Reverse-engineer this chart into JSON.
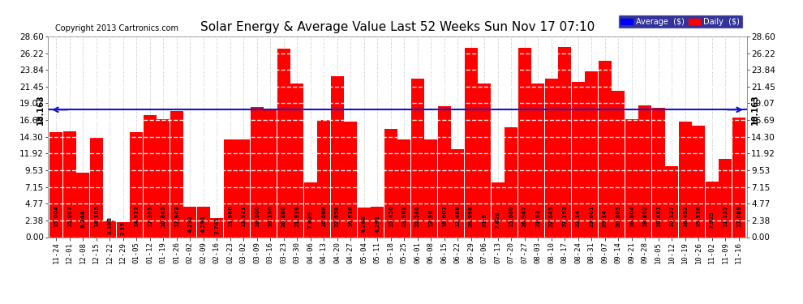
{
  "title": "Solar Energy & Average Value Last 52 Weeks Sun Nov 17 07:10",
  "copyright": "Copyright 2013 Cartronics.com",
  "average_label": "Average  ($)",
  "daily_label": "Daily  ($)",
  "average_value": 18.163,
  "ylim": [
    0,
    28.6
  ],
  "yticks": [
    0.0,
    2.38,
    4.77,
    7.15,
    9.53,
    11.92,
    14.3,
    16.69,
    19.07,
    21.45,
    23.84,
    26.22,
    28.6
  ],
  "bar_color": "#FF0000",
  "avg_line_color": "#1515CC",
  "background_color": "#FFFFFF",
  "plot_bg_color": "#FFFFFF",
  "grid_color": "#BBBBBB",
  "categories": [
    "11-24",
    "12-01",
    "12-08",
    "12-15",
    "12-22",
    "12-29",
    "01-05",
    "01-12",
    "01-19",
    "01-26",
    "02-02",
    "02-09",
    "02-16",
    "02-23",
    "03-02",
    "03-09",
    "03-16",
    "03-23",
    "03-30",
    "04-06",
    "04-13",
    "04-20",
    "04-27",
    "05-04",
    "05-11",
    "05-18",
    "05-25",
    "06-01",
    "06-08",
    "06-15",
    "06-22",
    "06-29",
    "07-06",
    "07-13",
    "07-20",
    "07-27",
    "08-03",
    "08-10",
    "08-17",
    "08-24",
    "08-31",
    "09-07",
    "09-14",
    "09-21",
    "09-28",
    "10-05",
    "10-12",
    "10-19",
    "10-26",
    "11-02",
    "11-09",
    "11-16"
  ],
  "values": [
    15.004,
    15.087,
    9.244,
    14.105,
    2.398,
    2.15,
    14.912,
    17.395,
    16.845,
    17.943,
    4.291,
    4.291,
    2.741,
    13.96,
    13.921,
    18.6,
    18.18,
    26.88,
    21.919,
    7.839,
    16.668,
    22.959,
    16.516,
    4.268,
    4.291,
    15.456,
    13.962,
    22.546,
    13.96,
    18.607,
    12.486,
    26.998,
    21.9,
    7.826,
    15.66,
    26.947,
    21.93,
    22.645,
    27.152,
    22.14,
    23.601,
    25.14,
    20.805,
    16.804,
    18.802,
    18.461,
    10.127,
    16.452,
    15.916,
    7.925,
    11.125,
    17.089
  ],
  "bar_labels": [
    "15.004",
    "15.087",
    "9.244",
    "14.105",
    "2.398",
    "2.15",
    "14.912",
    "17.395",
    "16.845",
    "17.943",
    "4.291",
    "4.291",
    "2.741",
    "13.960",
    "13.921",
    "18.600",
    "18.180",
    "26.880",
    "21.919",
    "7.839",
    "16.668",
    "22.959",
    "16.516",
    "4.268",
    "4.291",
    "15.456",
    "13.962",
    "22.546",
    "13.96",
    "18.607",
    "12.486",
    "26.998",
    "21.9",
    "7.826",
    "15.660",
    "26.947",
    "21.93",
    "22.645",
    "27.152",
    "22.14",
    "23.601",
    "25.14",
    "20.805",
    "16.804",
    "18.802",
    "18.461",
    "10.127",
    "16.452",
    "15.916",
    "7.925",
    "11.125",
    "17.089"
  ],
  "avg_text": "18.163",
  "legend_bg": "#000080",
  "legend_text_color": "#FFFFFF",
  "avg_legend_color": "#0000FF",
  "daily_legend_color": "#FF0000"
}
